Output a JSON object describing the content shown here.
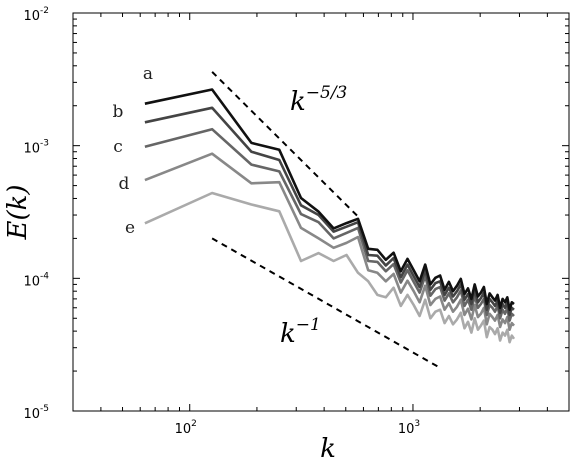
{
  "chart_data": {
    "type": "line",
    "xlabel": "k",
    "ylabel": "E(k)",
    "xscale": "log",
    "yscale": "log",
    "xlim": [
      30,
      5000
    ],
    "ylim": [
      1e-05,
      0.01
    ],
    "grid": false,
    "x_ticks": [
      {
        "value": 100,
        "base": "10",
        "exp": "2"
      },
      {
        "value": 1000,
        "base": "10",
        "exp": "3"
      }
    ],
    "y_ticks": [
      {
        "value": 1e-05,
        "base": "10",
        "exp": "-5"
      },
      {
        "value": 0.0001,
        "base": "10",
        "exp": "-4"
      },
      {
        "value": 0.001,
        "base": "10",
        "exp": "-3"
      },
      {
        "value": 0.01,
        "base": "10",
        "exp": "-2"
      }
    ],
    "x": [
      63,
      126,
      189,
      252,
      315,
      378,
      441,
      504,
      567,
      630,
      693,
      756,
      819,
      882,
      945,
      1008,
      1071,
      1134,
      1197,
      1260,
      1323,
      1386,
      1449,
      1512,
      1575,
      1638,
      1701,
      1764,
      1827,
      1890,
      1953,
      2016,
      2079,
      2142,
      2205,
      2268,
      2331,
      2394,
      2457,
      2520,
      2583,
      2646,
      2709,
      2772,
      2835
    ],
    "series": [
      {
        "name": "a",
        "color": "#111111",
        "values": [
          0.00207,
          0.00265,
          0.00105,
          0.00093,
          0.000403,
          0.000318,
          0.000238,
          0.000261,
          0.000281,
          0.000167,
          0.000164,
          0.000138,
          0.000156,
          0.000113,
          0.00014,
          0.000115,
          9.5e-05,
          0.000127,
          9e-05,
          0.000101,
          0.000105,
          8.2e-05,
          9.4e-05,
          8e-05,
          8.8e-05,
          9.9e-05,
          7.6e-05,
          8.4e-05,
          7e-05,
          9e-05,
          7.3e-05,
          7.8e-05,
          8.6e-05,
          6.4e-05,
          7.7e-05,
          7.2e-05,
          6.8e-05,
          7.5e-05,
          6e-05,
          7e-05,
          6.6e-05,
          7.2e-05,
          5.8e-05,
          6.6e-05,
          6.4e-05
        ]
      },
      {
        "name": "b",
        "color": "#444444",
        "values": [
          0.0015,
          0.00193,
          0.0009,
          0.00078,
          0.000355,
          0.0003,
          0.000225,
          0.000245,
          0.000265,
          0.00015,
          0.000148,
          0.000125,
          0.000142,
          0.000102,
          0.000127,
          0.000104,
          8.6e-05,
          0.000115,
          8.2e-05,
          9.2e-05,
          9.5e-05,
          7.5e-05,
          8.5e-05,
          7.3e-05,
          8e-05,
          9e-05,
          6.9e-05,
          7.6e-05,
          6.4e-05,
          8.2e-05,
          6.6e-05,
          7.1e-05,
          7.8e-05,
          5.8e-05,
          7e-05,
          6.6e-05,
          6.2e-05,
          6.8e-05,
          5.5e-05,
          6.4e-05,
          6e-05,
          6.6e-05,
          5.3e-05,
          6e-05,
          5.8e-05
        ]
      },
      {
        "name": "c",
        "color": "#666666",
        "values": [
          0.00098,
          0.00133,
          0.00072,
          0.00064,
          0.000305,
          0.000265,
          0.0002,
          0.00022,
          0.00024,
          0.000135,
          0.000133,
          0.000113,
          0.000128,
          9.3e-05,
          0.000115,
          9.4e-05,
          7.8e-05,
          0.000104,
          7.4e-05,
          8.3e-05,
          8.6e-05,
          6.8e-05,
          7.7e-05,
          6.6e-05,
          7.2e-05,
          8.1e-05,
          6.2e-05,
          6.9e-05,
          5.8e-05,
          7.4e-05,
          6e-05,
          6.4e-05,
          7e-05,
          5.3e-05,
          6.3e-05,
          6e-05,
          5.6e-05,
          6.2e-05,
          5e-05,
          5.8e-05,
          5.4e-05,
          6e-05,
          4.8e-05,
          5.4e-05,
          5.2e-05
        ]
      },
      {
        "name": "d",
        "color": "#888888",
        "values": [
          0.00055,
          0.00087,
          0.00052,
          0.00053,
          0.00024,
          0.0002,
          0.00017,
          0.000185,
          0.000205,
          0.000115,
          0.00011,
          9.5e-05,
          0.000108,
          7.8e-05,
          9.6e-05,
          8e-05,
          6.6e-05,
          8.8e-05,
          6.3e-05,
          7e-05,
          7.3e-05,
          5.8e-05,
          6.5e-05,
          5.6e-05,
          6.1e-05,
          6.9e-05,
          5.3e-05,
          5.9e-05,
          4.9e-05,
          6.3e-05,
          5.1e-05,
          5.4e-05,
          6e-05,
          4.5e-05,
          5.4e-05,
          5.1e-05,
          4.8e-05,
          5.3e-05,
          4.3e-05,
          4.9e-05,
          4.6e-05,
          5.1e-05,
          4.1e-05,
          4.6e-05,
          4.4e-05
        ]
      },
      {
        "name": "e",
        "color": "#aaaaaa",
        "values": [
          0.00026,
          0.00044,
          0.00036,
          0.00032,
          0.000135,
          0.000155,
          0.000135,
          0.00015,
          0.00011,
          9.5e-05,
          7.5e-05,
          7.2e-05,
          8.5e-05,
          6.2e-05,
          7.5e-05,
          6.3e-05,
          5.2e-05,
          6.9e-05,
          5e-05,
          5.6e-05,
          5.8e-05,
          4.6e-05,
          5.2e-05,
          4.5e-05,
          4.9e-05,
          5.5e-05,
          4.2e-05,
          4.7e-05,
          3.9e-05,
          5e-05,
          4.1e-05,
          4.4e-05,
          4.8e-05,
          3.6e-05,
          4.3e-05,
          4.1e-05,
          3.8e-05,
          4.2e-05,
          3.4e-05,
          3.9e-05,
          3.7e-05,
          4.1e-05,
          3.3e-05,
          3.7e-05,
          3.5e-05
        ]
      }
    ],
    "reference_lines": [
      {
        "label_base": "k",
        "label_exp": "−5/3",
        "x": [
          126,
          570
        ],
        "y": [
          0.0036,
          0.00029
        ]
      },
      {
        "label_base": "k",
        "label_exp": "−1",
        "x": [
          126,
          1300
        ],
        "y": [
          0.0002,
          2.15e-05
        ]
      }
    ]
  }
}
